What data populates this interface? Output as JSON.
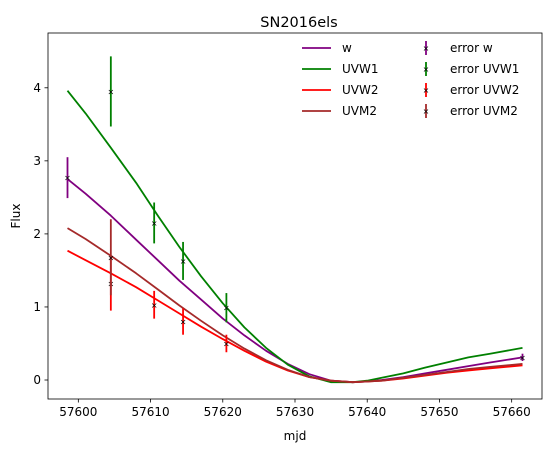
{
  "chart_data": {
    "type": "line",
    "title": "SN2016els",
    "xlabel": "mjd",
    "ylabel": "Flux",
    "xlim": [
      57595.8,
      57664.2
    ],
    "ylim": [
      -0.26,
      4.75
    ],
    "xticks": [
      57600,
      57610,
      57620,
      57630,
      57640,
      57650,
      57660
    ],
    "yticks": [
      0,
      1,
      2,
      3,
      4
    ],
    "grid": false,
    "legend_position": "top-right",
    "series": [
      {
        "name": "w",
        "color": "#800080",
        "curve": {
          "x": [
            57598.5,
            57601,
            57604.5,
            57608,
            57611,
            57614,
            57617,
            57620,
            57623,
            57626,
            57629,
            57632,
            57635,
            57638,
            57640,
            57642,
            57645,
            57648,
            57651,
            57654,
            57657,
            57661.5
          ],
          "y": [
            2.75,
            2.55,
            2.25,
            1.92,
            1.64,
            1.36,
            1.1,
            0.84,
            0.61,
            0.4,
            0.22,
            0.08,
            -0.01,
            -0.03,
            -0.02,
            0.0,
            0.04,
            0.09,
            0.14,
            0.19,
            0.24,
            0.31
          ]
        },
        "errorbars": {
          "x": [
            57598.5,
            57661.5
          ],
          "y": [
            2.77,
            0.31
          ],
          "err": [
            0.28,
            0.05
          ]
        }
      },
      {
        "name": "UVW1",
        "color": "#008000",
        "curve": {
          "x": [
            57598.5,
            57601,
            57604.5,
            57608,
            57611,
            57614,
            57617,
            57620,
            57623,
            57626,
            57629,
            57632,
            57635,
            57638,
            57640,
            57642,
            57645,
            57648,
            57651,
            57654,
            57657,
            57661.5
          ],
          "y": [
            3.96,
            3.65,
            3.18,
            2.7,
            2.25,
            1.82,
            1.42,
            1.05,
            0.72,
            0.44,
            0.21,
            0.05,
            -0.03,
            -0.03,
            -0.01,
            0.03,
            0.09,
            0.17,
            0.24,
            0.31,
            0.36,
            0.44
          ]
        },
        "errorbars": {
          "x": [
            57604.5,
            57610.5,
            57614.5,
            57620.5
          ],
          "y": [
            3.95,
            2.15,
            1.63,
            0.99
          ],
          "err": [
            0.48,
            0.28,
            0.26,
            0.2
          ]
        }
      },
      {
        "name": "UVW2",
        "color": "#ff0000",
        "curve": {
          "x": [
            57598.5,
            57601,
            57604.5,
            57608,
            57611,
            57614,
            57617,
            57620,
            57623,
            57626,
            57629,
            57632,
            57635,
            57638,
            57640,
            57642,
            57645,
            57648,
            57651,
            57654,
            57657,
            57661.5
          ],
          "y": [
            1.77,
            1.64,
            1.46,
            1.27,
            1.09,
            0.91,
            0.73,
            0.56,
            0.4,
            0.25,
            0.13,
            0.04,
            -0.01,
            -0.03,
            -0.02,
            -0.01,
            0.02,
            0.06,
            0.1,
            0.13,
            0.16,
            0.2
          ]
        },
        "errorbars": {
          "x": [
            57604.5,
            57610.5,
            57614.5,
            57620.5
          ],
          "y": [
            1.32,
            1.03,
            0.8,
            0.5
          ],
          "err": [
            0.37,
            0.19,
            0.18,
            0.12
          ]
        }
      },
      {
        "name": "UVM2",
        "color": "#a52a2a",
        "curve": {
          "x": [
            57598.5,
            57601,
            57604.5,
            57608,
            57611,
            57614,
            57617,
            57620,
            57623,
            57626,
            57629,
            57632,
            57635,
            57638,
            57640,
            57642,
            57645,
            57648,
            57651,
            57654,
            57657,
            57661.5
          ],
          "y": [
            2.08,
            1.93,
            1.7,
            1.46,
            1.24,
            1.02,
            0.81,
            0.61,
            0.43,
            0.27,
            0.14,
            0.04,
            -0.01,
            -0.03,
            -0.02,
            -0.01,
            0.03,
            0.07,
            0.11,
            0.15,
            0.18,
            0.22
          ]
        },
        "errorbars": {
          "x": [
            57604.5
          ],
          "y": [
            1.68
          ],
          "err": [
            0.52
          ]
        }
      }
    ],
    "legend": {
      "lines": [
        "w",
        "UVW1",
        "UVW2",
        "UVM2"
      ],
      "errors": [
        "error w",
        "error UVW1",
        "error UVW2",
        "error UVM2"
      ]
    }
  }
}
